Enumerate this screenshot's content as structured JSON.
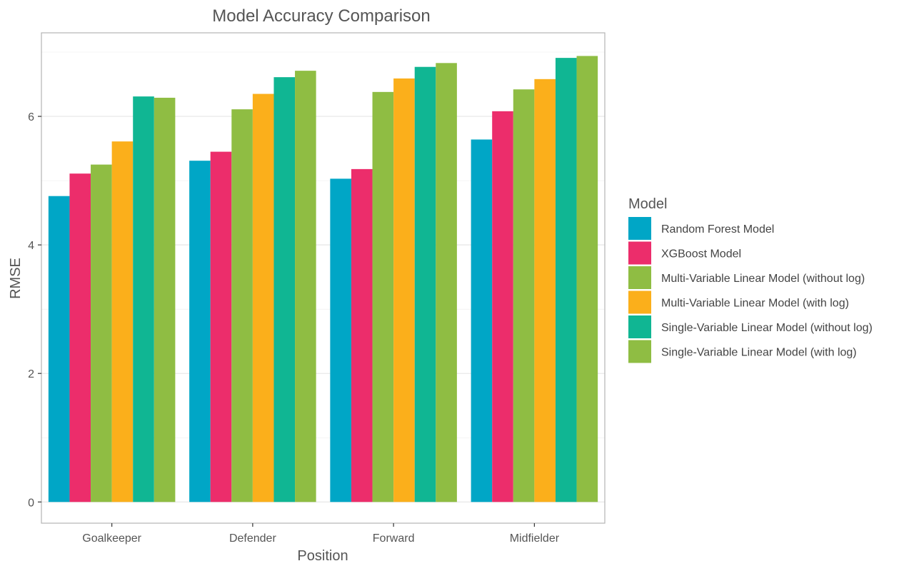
{
  "chart_data": {
    "type": "bar",
    "title": "Model Accuracy Comparison",
    "xlabel": "Position",
    "ylabel": "RMSE",
    "categories": [
      "Goalkeeper",
      "Defender",
      "Forward",
      "Midfielder"
    ],
    "ylim": [
      -0.33,
      7.3
    ],
    "yticks": [
      0,
      2,
      4,
      6
    ],
    "grid": true,
    "legend": {
      "title": "Model",
      "position": "right"
    },
    "series": [
      {
        "name": "Random Forest Model",
        "color": "#00A6C6",
        "values": [
          4.76,
          5.31,
          5.03,
          5.64
        ]
      },
      {
        "name": "XGBoost Model",
        "color": "#EC2D6B",
        "values": [
          5.11,
          5.45,
          5.18,
          6.08
        ]
      },
      {
        "name": "Multi-Variable Linear Model (without log)",
        "color": "#8FBD43",
        "values": [
          5.25,
          6.11,
          6.38,
          6.42
        ]
      },
      {
        "name": "Multi-Variable Linear Model (with log)",
        "color": "#FBAF1B",
        "values": [
          5.61,
          6.35,
          6.59,
          6.58
        ]
      },
      {
        "name": "Single-Variable Linear Model (without log)",
        "color": "#10B693",
        "values": [
          6.31,
          6.61,
          6.77,
          6.91
        ]
      },
      {
        "name": "Single-Variable Linear Model (with log)",
        "color": "#8FBD43",
        "values": [
          6.29,
          6.71,
          6.83,
          6.94
        ]
      }
    ]
  }
}
